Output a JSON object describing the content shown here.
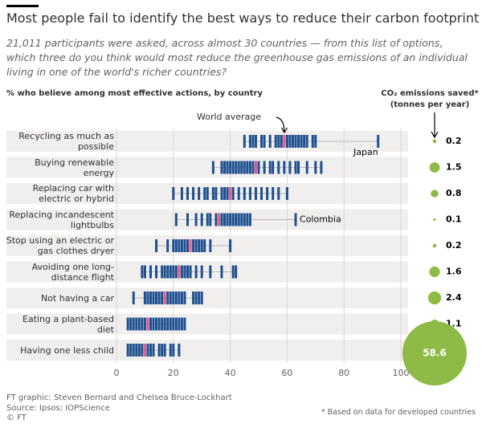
{
  "chart_data": {
    "type": "strip",
    "title": "Most people fail to identify the best ways to reduce their carbon footprint",
    "subtitle": "21,011 participants were asked, across almost 30 countries  — from this list of options, which three do you think would most reduce the greenhouse gas emissions of an individual living in one of the world's richer countries?",
    "x_label": "% who believe among most effective actions, by country",
    "bubble_label": "CO₂ emissions saved*",
    "bubble_unit": "(tonnes per year)",
    "average_label": "World average",
    "country_color": "#1e4f8f",
    "average_color": "#e0578d",
    "bubble_color": "#8dbb45",
    "grid": true,
    "xlim": [
      0,
      100
    ],
    "xticks": [
      0,
      20,
      40,
      60,
      80,
      100
    ],
    "rows": [
      {
        "label": "Recycling as much as possible",
        "countries": [
          45,
          47,
          48,
          49,
          51,
          52,
          54,
          56,
          57,
          58,
          60,
          61,
          62,
          63,
          64,
          65,
          66,
          67,
          69,
          70
        ],
        "highlighted": [
          {
            "name": "Japan",
            "value": 92
          }
        ],
        "world_average": 59,
        "co2_saved": 0.2
      },
      {
        "label": "Buying renewable energy",
        "countries": [
          34,
          37,
          38,
          39,
          40,
          41,
          42,
          43,
          44,
          45,
          46,
          47,
          48,
          50,
          52,
          54,
          55,
          57,
          59,
          61,
          63,
          64,
          67,
          70,
          72
        ],
        "highlighted": [],
        "world_average": 49,
        "co2_saved": 1.5
      },
      {
        "label": "Replacing car with electric or hybrid",
        "countries": [
          20,
          23,
          25,
          27,
          29,
          31,
          32,
          34,
          35,
          37,
          38,
          39,
          41,
          43,
          45,
          47,
          49,
          51,
          53,
          55,
          57,
          60
        ],
        "highlighted": [],
        "world_average": 40,
        "co2_saved": 0.8
      },
      {
        "label": "Replacing incandescent lightbulbs",
        "countries": [
          21,
          25,
          28,
          30,
          32,
          33,
          35,
          37,
          38,
          39,
          40,
          41,
          42,
          43,
          44,
          45,
          46,
          47
        ],
        "highlighted": [
          {
            "name": "Colombia",
            "value": 63
          }
        ],
        "world_average": 36,
        "co2_saved": 0.1
      },
      {
        "label": "Stop using an electric or gas clothes dryer",
        "countries": [
          14,
          18,
          20,
          21,
          22,
          23,
          24,
          25,
          27,
          28,
          29,
          30,
          31,
          33,
          40
        ],
        "highlighted": [],
        "world_average": 26,
        "co2_saved": 0.2
      },
      {
        "label": "Avoiding one long-distance flight",
        "countries": [
          9,
          10,
          12,
          14,
          16,
          17,
          18,
          19,
          20,
          21,
          23,
          24,
          25,
          26,
          28,
          30,
          33,
          37,
          41,
          42
        ],
        "highlighted": [],
        "world_average": 22,
        "co2_saved": 1.6
      },
      {
        "label": "Not having a car",
        "countries": [
          6,
          10,
          11,
          12,
          13,
          14,
          15,
          16,
          18,
          19,
          20,
          21,
          22,
          23,
          24,
          27,
          28,
          29,
          30
        ],
        "highlighted": [],
        "world_average": 17,
        "co2_saved": 2.4
      },
      {
        "label": "Eating a plant-based diet",
        "countries": [
          4,
          5,
          6,
          7,
          8,
          9,
          10,
          12,
          13,
          14,
          15,
          16,
          17,
          18,
          19,
          20,
          21,
          22,
          23,
          24
        ],
        "highlighted": [],
        "world_average": 11,
        "co2_saved": 1.1
      },
      {
        "label": "Having one less child",
        "countries": [
          4,
          5,
          6,
          7,
          8,
          9,
          11,
          12,
          13,
          15,
          16,
          17,
          19,
          20,
          22
        ],
        "highlighted": [],
        "world_average": 10,
        "co2_saved": 58.6
      }
    ],
    "credit": "FT graphic: Steven Bernard and Chelsea Bruce-Lockhart",
    "source": "Source: Ipsos; IOPScience",
    "copyright": "© FT",
    "footnote": "* Based on data for developed countries"
  }
}
